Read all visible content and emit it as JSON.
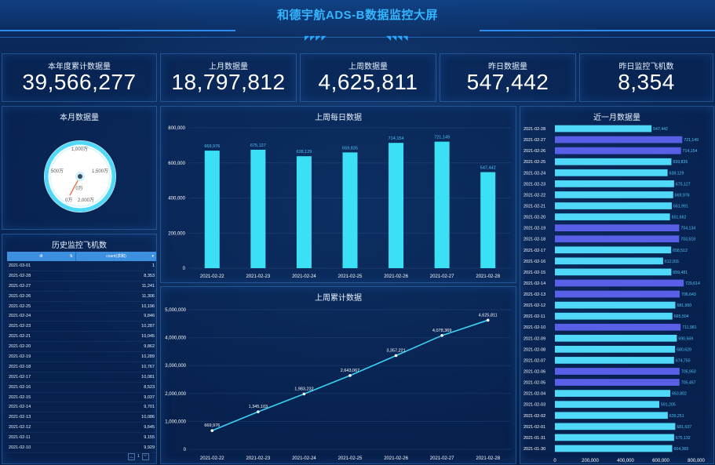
{
  "header": {
    "title": "和德宇航ADS-B数据监控大屏"
  },
  "kpis": [
    {
      "label": "本年度累计数据量",
      "value": "39,566,277"
    },
    {
      "label": "上月数据量",
      "value": "18,797,812"
    },
    {
      "label": "上周数据量",
      "value": "4,625,811"
    },
    {
      "label": "昨日数据量",
      "value": "547,442"
    },
    {
      "label": "昨日监控飞机数",
      "value": "8,354"
    }
  ],
  "gauge": {
    "title": "本月数据量",
    "labels": [
      "0万",
      "500万",
      "1,000万",
      "1,500万",
      "2,000万"
    ],
    "center_label": "0万",
    "value": 0
  },
  "history_table": {
    "title": "历史监控飞机数",
    "columns": [
      "dt",
      "count(求和)"
    ],
    "rows": [
      [
        "2021-03-01",
        "1"
      ],
      [
        "2021-02-28",
        "8,353"
      ],
      [
        "2021-02-27",
        "11,241"
      ],
      [
        "2021-02-26",
        "11,306"
      ],
      [
        "2021-02-25",
        "10,196"
      ],
      [
        "2021-02-24",
        "9,846"
      ],
      [
        "2021-02-23",
        "10,287"
      ],
      [
        "2021-02-21",
        "10,045"
      ],
      [
        "2021-02-20",
        "9,862"
      ],
      [
        "2021-02-19",
        "10,289"
      ],
      [
        "2021-02-18",
        "10,767"
      ],
      [
        "2021-02-17",
        "10,081"
      ],
      [
        "2021-02-16",
        "8,523"
      ],
      [
        "2021-02-15",
        "9,037"
      ],
      [
        "2021-02-14",
        "9,701"
      ],
      [
        "2021-02-13",
        "10,086"
      ],
      [
        "2021-02-12",
        "9,645"
      ],
      [
        "2021-02-11",
        "9,155"
      ],
      [
        "2021-02-10",
        "9,929"
      ]
    ],
    "page": "1"
  },
  "chart_data": [
    {
      "type": "bar",
      "title": "上周每日数据",
      "categories": [
        "2021-02-22",
        "2021-02-23",
        "2021-02-24",
        "2021-02-25",
        "2021-02-26",
        "2021-02-27",
        "2021-02-28"
      ],
      "values": [
        669976,
        675127,
        638129,
        659835,
        714154,
        721149,
        547442
      ],
      "value_labels": [
        "669,976",
        "675,127",
        "638,129",
        "659,835",
        "714,154",
        "721,149",
        "547,442"
      ],
      "yticks": [
        "0",
        "200,000",
        "400,000",
        "600,000",
        "800,000"
      ],
      "ylim": [
        0,
        800000
      ],
      "colors": {
        "bar": "#3ce0f5",
        "label": "#4fc3f7"
      }
    },
    {
      "type": "line",
      "title": "上周累计数据",
      "categories": [
        "2021-02-22",
        "2021-02-23",
        "2021-02-24",
        "2021-02-25",
        "2021-02-26",
        "2021-02-27",
        "2021-02-28"
      ],
      "values": [
        669976,
        1345103,
        1983232,
        2643067,
        3357221,
        4078369,
        4625811
      ],
      "value_labels": [
        "669,976",
        "1,345,103",
        "1,983,232",
        "2,643,067",
        "3,357,221",
        "4,078,369",
        "4,625,811"
      ],
      "yticks": [
        "0",
        "1,000,000",
        "2,000,000",
        "3,000,000",
        "4,000,000",
        "5,000,000"
      ],
      "ylim": [
        0,
        5000000
      ],
      "colors": {
        "line": "#3ad1f5",
        "point": "#ffffff"
      }
    },
    {
      "type": "bar",
      "orientation": "horizontal",
      "title": "近一月数据量",
      "categories": [
        "2021-02-28",
        "2021-02-27",
        "2021-02-26",
        "2021-02-25",
        "2021-02-24",
        "2021-02-23",
        "2021-02-22",
        "2021-02-21",
        "2021-02-20",
        "2021-02-19",
        "2021-02-18",
        "2021-02-17",
        "2021-02-16",
        "2021-02-15",
        "2021-02-14",
        "2021-02-13",
        "2021-02-12",
        "2021-02-11",
        "2021-02-10",
        "2021-02-09",
        "2021-02-08",
        "2021-02-07",
        "2021-02-06",
        "2021-02-05",
        "2021-02-04",
        "2021-02-03",
        "2021-02-02",
        "2021-02-01",
        "2021-01-31",
        "2021-01-30"
      ],
      "values": [
        547442,
        721149,
        714154,
        659835,
        638129,
        675127,
        669976,
        661991,
        651662,
        704134,
        703518,
        658512,
        612911,
        659481,
        729614,
        706643,
        681960,
        665504,
        711981,
        690569,
        680629,
        674750,
        705950,
        705457,
        653802,
        591205,
        639251,
        681637,
        675132,
        664365
      ],
      "value_labels": [
        "547,442",
        "721,149",
        "714,154",
        "659,835",
        "638,129",
        "675,127",
        "669,976",
        "661,991",
        "651,662",
        "704,134",
        "703,518",
        "658,512",
        "612,911",
        "659,481",
        "729,614",
        "706,643",
        "681,960",
        "665,504",
        "711,981",
        "690,569",
        "680,629",
        "674,750",
        "705,950",
        "705,457",
        "653,802",
        "591,205",
        "639,251",
        "681,637",
        "675,132",
        "664,365"
      ],
      "xticks": [
        "0",
        "200,000",
        "400,000",
        "600,000",
        "800,000"
      ],
      "xlim": [
        0,
        800000
      ],
      "colors": {
        "bar_light": "#4fd8f7",
        "bar_dark": "#5a5fe8",
        "label": "#4fc3f7"
      }
    }
  ]
}
